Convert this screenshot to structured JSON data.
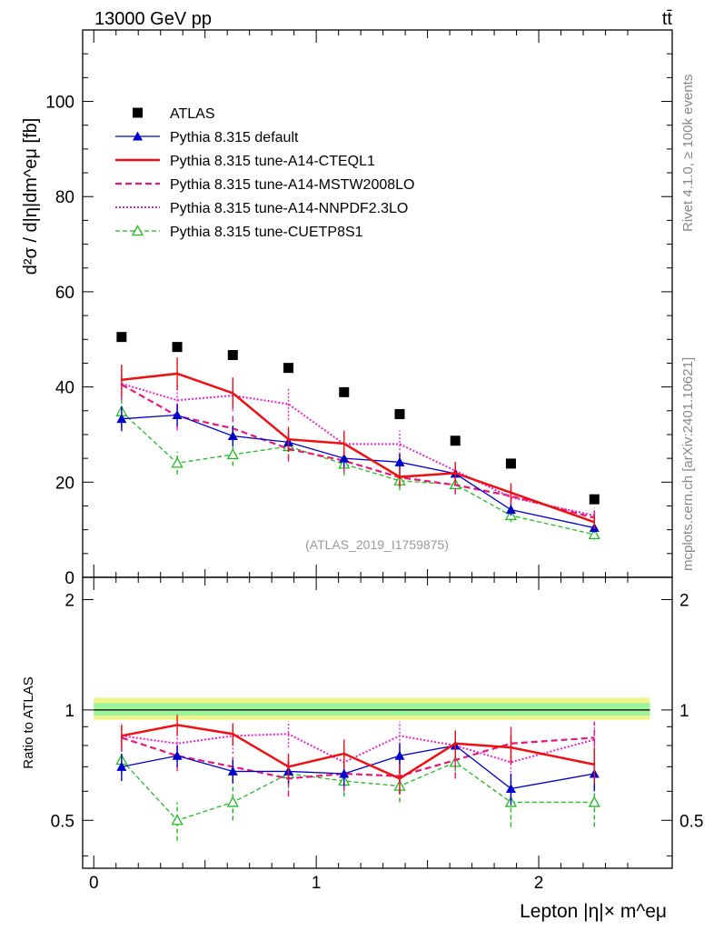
{
  "header": {
    "energy_label": "13000 GeV pp",
    "process_label": "tt̄",
    "analysis_label": "(ATLAS_2019_I1759875)",
    "side_rivet": "Rivet 4.1.0, ≥ 100k events",
    "side_mcplots": "mcplots.cern.ch [arXiv:2401.10621]"
  },
  "axes": {
    "main_ylabel": "d²σ / d|η|dm^eμ [fb]",
    "ratio_ylabel": "Ratio to ATLAS",
    "xlabel": "Lepton |η|× m^eμ"
  },
  "colors": {
    "data": "#000000",
    "default": "#0000cc",
    "cteql1": "#ee1111",
    "mstw": "#e8177b",
    "nnpdf": "#ee22cc",
    "cuetp": "#22bb22",
    "band_outer": "#f2f58a",
    "band_inner": "#9cf59c"
  },
  "chart_data": {
    "type": "line",
    "x": [
      0.125,
      0.375,
      0.625,
      0.875,
      1.125,
      1.375,
      1.625,
      1.875,
      2.25
    ],
    "x_edges": [
      0,
      0.25,
      0.5,
      0.75,
      1.0,
      1.25,
      1.5,
      1.75,
      2.0,
      2.5
    ],
    "xlim": [
      -0.05,
      2.6
    ],
    "xticks": [
      0,
      1,
      2
    ],
    "main_ylim": [
      0,
      115
    ],
    "main_yticks": [
      20,
      40,
      60,
      80,
      100
    ],
    "ratio_ylim": [
      0.37,
      2.3
    ],
    "ratio_yticks": [
      0.5,
      1,
      2
    ],
    "data": {
      "name": "ATLAS",
      "values": [
        50.5,
        48.4,
        46.7,
        44.0,
        38.9,
        34.3,
        28.7,
        23.9,
        16.4
      ]
    },
    "series": [
      {
        "name": "Pythia 8.315 default",
        "key": "default",
        "values": [
          33.3,
          34.1,
          29.7,
          28.4,
          25.0,
          24.2,
          21.8,
          14.2,
          10.4
        ],
        "errors": [
          2.6,
          2.3,
          2.2,
          2.0,
          1.9,
          1.8,
          1.6,
          1.2,
          1.0
        ],
        "ratio": [
          0.7,
          0.75,
          0.68,
          0.68,
          0.67,
          0.75,
          0.8,
          0.61,
          0.67
        ],
        "ratio_errors": [
          0.06,
          0.05,
          0.05,
          0.05,
          0.05,
          0.06,
          0.06,
          0.06,
          0.07
        ]
      },
      {
        "name": "Pythia 8.315 tune-A14-CTEQL1",
        "key": "cteql1",
        "values": [
          41.5,
          42.8,
          38.7,
          29.0,
          28.1,
          21.1,
          21.9,
          17.8,
          11.6
        ],
        "errors": [
          3.2,
          3.4,
          3.3,
          2.6,
          2.6,
          2.0,
          2.3,
          2.0,
          1.5
        ],
        "ratio": [
          0.85,
          0.91,
          0.86,
          0.7,
          0.76,
          0.65,
          0.81,
          0.79,
          0.71
        ],
        "ratio_errors": [
          0.06,
          0.06,
          0.06,
          0.06,
          0.07,
          0.06,
          0.07,
          0.08,
          0.08
        ]
      },
      {
        "name": "Pythia 8.315 tune-A14-MSTW2008LO",
        "key": "mstw",
        "values": [
          40.5,
          33.9,
          31.3,
          27.0,
          24.5,
          21.0,
          19.4,
          17.1,
          12.5
        ],
        "errors": [
          3.3,
          3.0,
          2.9,
          2.7,
          2.4,
          2.0,
          2.0,
          1.9,
          1.5
        ],
        "ratio": [
          0.84,
          0.75,
          0.7,
          0.65,
          0.67,
          0.66,
          0.73,
          0.81,
          0.84
        ],
        "ratio_errors": [
          0.07,
          0.07,
          0.07,
          0.07,
          0.07,
          0.07,
          0.08,
          0.09,
          0.09
        ]
      },
      {
        "name": "Pythia 8.315 tune-A14-NNPDF2.3LO",
        "key": "nnpdf",
        "values": [
          40.7,
          37.2,
          38.2,
          36.4,
          28.0,
          28.0,
          22.4,
          16.8,
          13.0
        ],
        "errors": [
          3.4,
          3.3,
          3.3,
          3.3,
          2.8,
          2.8,
          2.3,
          2.0,
          1.6
        ],
        "ratio": [
          0.85,
          0.81,
          0.85,
          0.86,
          0.72,
          0.85,
          0.8,
          0.72,
          0.83
        ],
        "ratio_errors": [
          0.07,
          0.07,
          0.07,
          0.07,
          0.07,
          0.08,
          0.08,
          0.09,
          0.09
        ]
      },
      {
        "name": "Pythia 8.315 tune-CUETP8S1",
        "key": "cuetp",
        "values": [
          34.8,
          24.0,
          25.8,
          27.5,
          23.8,
          20.3,
          19.5,
          13.0,
          9.0
        ],
        "errors": [
          2.9,
          2.4,
          2.4,
          2.5,
          2.3,
          2.0,
          2.0,
          1.4,
          1.1
        ],
        "ratio": [
          0.73,
          0.5,
          0.56,
          0.67,
          0.64,
          0.62,
          0.72,
          0.56,
          0.56
        ],
        "ratio_errors": [
          0.06,
          0.06,
          0.06,
          0.06,
          0.06,
          0.06,
          0.07,
          0.08,
          0.08
        ]
      }
    ]
  }
}
